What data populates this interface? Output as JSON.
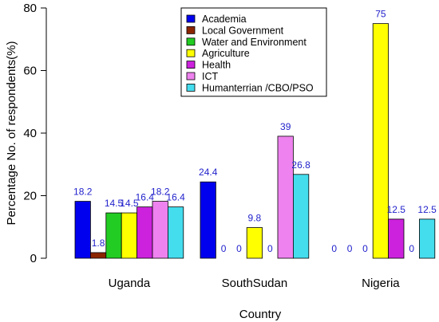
{
  "chart_data": {
    "type": "bar",
    "title": "",
    "xlabel": "Country",
    "ylabel": "Percentage No. of respondents(%)",
    "ylim": [
      0,
      80
    ],
    "yticks": [
      0,
      20,
      40,
      60,
      80
    ],
    "grid": false,
    "legend_position": "top-right",
    "categories": [
      "Uganda",
      "SouthSudan",
      "Nigeria"
    ],
    "series": [
      {
        "name": "Academia",
        "color": "#0000ee",
        "values": [
          18.2,
          24.4,
          0
        ]
      },
      {
        "name": "Local Government",
        "color": "#8b2500",
        "values": [
          1.8,
          0,
          0
        ]
      },
      {
        "name": "Water and Environment",
        "color": "#22cc22",
        "values": [
          14.5,
          0,
          0
        ]
      },
      {
        "name": "Agriculture",
        "color": "#ffff00",
        "values": [
          14.5,
          9.8,
          75
        ]
      },
      {
        "name": "Health",
        "color": "#cc22dd",
        "values": [
          16.4,
          0,
          12.5
        ]
      },
      {
        "name": "ICT",
        "color": "#ee82ee",
        "values": [
          18.2,
          39,
          0
        ]
      },
      {
        "name": "Humanterrian /CBO/PSO",
        "color": "#44ddee",
        "values": [
          16.4,
          26.8,
          12.5
        ]
      }
    ],
    "data_labels": [
      [
        "18.2",
        "1.8",
        "14.5",
        "14.5",
        "16.4",
        "18.2",
        "16.4"
      ],
      [
        "24.4",
        "0",
        "0",
        "9.8",
        "0",
        "39",
        "26.8"
      ],
      [
        "0",
        "0",
        "0",
        "75",
        "12.5",
        "0",
        "12.5"
      ]
    ]
  }
}
